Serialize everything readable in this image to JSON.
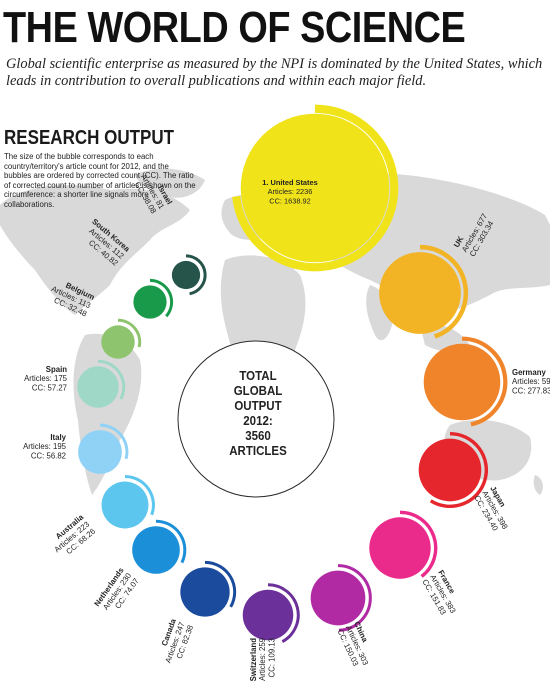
{
  "header": {
    "title": "THE WORLD OF SCIENCE",
    "subtitle": "Global scientific enterprise as measured by the NPI is dominated by the United States, which leads in contribution to overall publications and within each major field."
  },
  "section": {
    "heading": "RESEARCH OUTPUT",
    "description": "The size of the bubble corresponds to each country/territory's article count for 2012, and the bubbles are ordered by corrected count (CC). The ratio of corrected count to number of articles is shown on the circumference: a shorter line signals more collaborations."
  },
  "center": {
    "lines": [
      "TOTAL",
      "GLOBAL",
      "OUTPUT",
      "2012:",
      "3560",
      "ARTICLES"
    ]
  },
  "chart_data": {
    "type": "bubble",
    "total_articles": 3560,
    "countries": [
      {
        "name": "1. United States",
        "articles": 2236,
        "cc": 1638.92,
        "articles_label": "Articles: 2236",
        "cc_label": "CC: 1638.92",
        "color": "#f1e31a"
      },
      {
        "name": "UK",
        "articles": 677,
        "cc": 303.34,
        "articles_label": "Articles: 677",
        "cc_label": "CC: 303.34",
        "color": "#f2b324"
      },
      {
        "name": "Germany",
        "articles": 595,
        "cc": 277.83,
        "articles_label": "Articles: 595",
        "cc_label": "CC: 277.83",
        "color": "#f0842a"
      },
      {
        "name": "Japan",
        "articles": 398,
        "cc": 234.4,
        "articles_label": "Articles: 398",
        "cc_label": "CC: 234.40",
        "color": "#e5262c"
      },
      {
        "name": "France",
        "articles": 383,
        "cc": 151.83,
        "articles_label": "Articles: 383",
        "cc_label": "CC: 151.83",
        "color": "#eb2b8c"
      },
      {
        "name": "China",
        "articles": 303,
        "cc": 150.03,
        "articles_label": "Articles: 303",
        "cc_label": "CC: 150.03",
        "color": "#b12aa4"
      },
      {
        "name": "Switzerland",
        "articles": 259,
        "cc": 109.13,
        "articles_label": "Articles: 259",
        "cc_label": "CC: 109.13",
        "color": "#6b3099"
      },
      {
        "name": "Canada",
        "articles": 247,
        "cc": 82.38,
        "articles_label": "Articles: 247",
        "cc_label": "CC: 82.38",
        "color": "#1b4b9c"
      },
      {
        "name": "Netherlands",
        "articles": 230,
        "cc": 74.07,
        "articles_label": "Articles: 230",
        "cc_label": "CC: 74.07",
        "color": "#1b8fd8"
      },
      {
        "name": "Australia",
        "articles": 223,
        "cc": 68.26,
        "articles_label": "Articles: 223",
        "cc_label": "CC: 68.26",
        "color": "#5cc6ee"
      },
      {
        "name": "Italy",
        "articles": 195,
        "cc": 56.82,
        "articles_label": "Articles: 195",
        "cc_label": "CC: 56.82",
        "color": "#8fd2f5"
      },
      {
        "name": "Spain",
        "articles": 175,
        "cc": 57.27,
        "articles_label": "Articles: 175",
        "cc_label": "CC: 57.27",
        "color": "#9fd8c7"
      },
      {
        "name": "Belgium",
        "articles": 113,
        "cc": 32.48,
        "articles_label": "Articles: 113",
        "cc_label": "CC: 32.48",
        "color": "#8ec46d"
      },
      {
        "name": "South Korea",
        "articles": 112,
        "cc": 40.82,
        "articles_label": "Articles: 112",
        "cc_label": "CC: 40.82",
        "color": "#199a4a"
      },
      {
        "name": "Israel",
        "articles": 81,
        "cc": 38.08,
        "articles_label": "Articles: 81",
        "cc_label": "CC: 38.08",
        "color": "#26534a"
      }
    ]
  }
}
